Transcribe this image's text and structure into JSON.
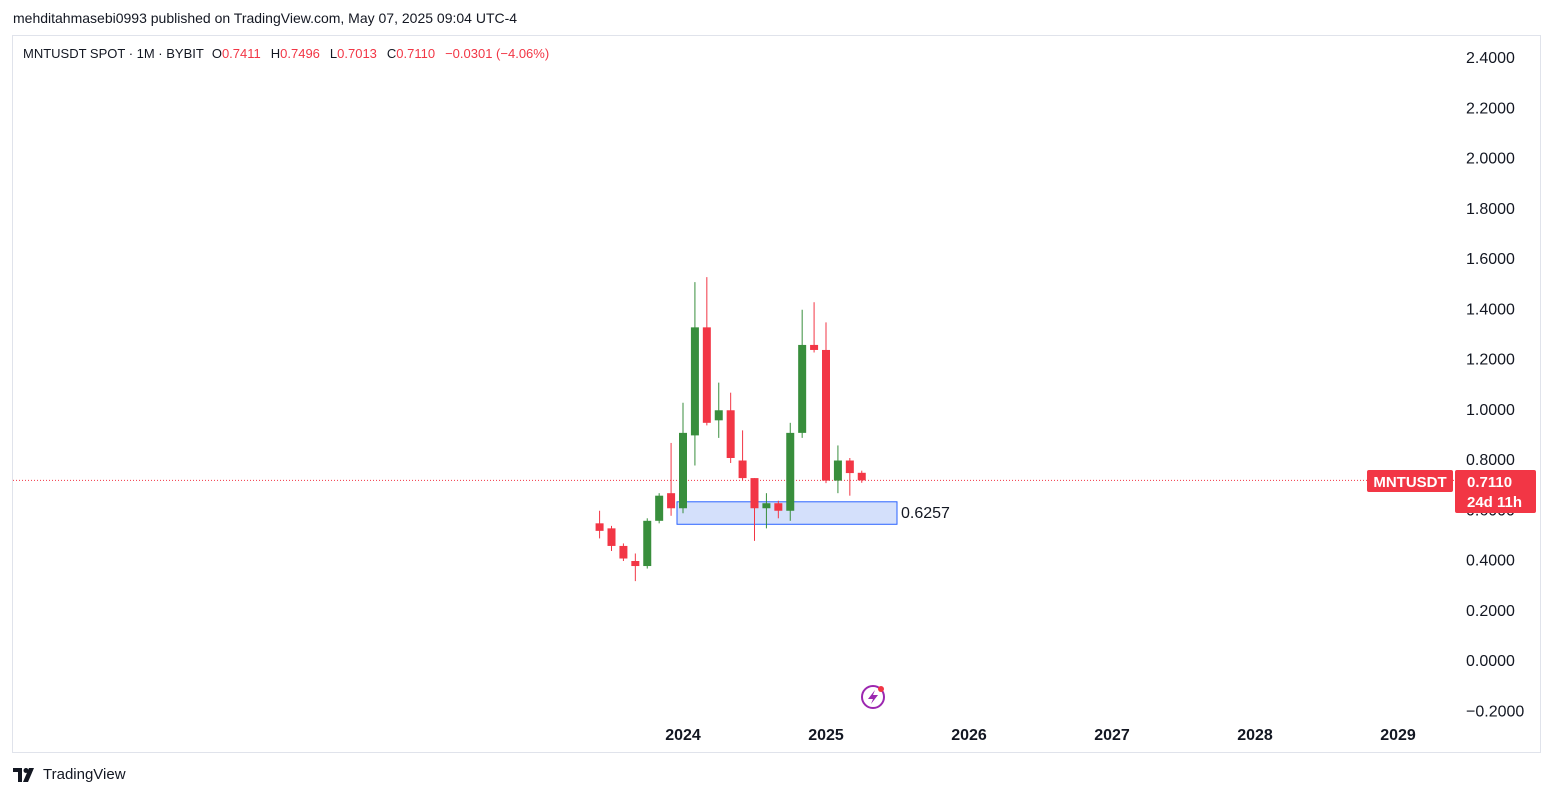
{
  "header": {
    "published_text": "mehditahmasebi0993 published on TradingView.com, May 07, 2025 09:04 UTC-4"
  },
  "legend": {
    "symbol": "MNTUSDT SPOT · 1M · BYBIT",
    "open_label": "O",
    "open": "0.7411",
    "high_label": "H",
    "high": "0.7496",
    "low_label": "L",
    "low": "0.7013",
    "close_label": "C",
    "close": "0.7110",
    "change": "−0.0301 (−4.06%)"
  },
  "price_tag": {
    "symbol": "MNTUSDT",
    "price": "0.7110",
    "countdown": "24d 11h"
  },
  "zone_label": "0.6257",
  "footer": {
    "brand": "TradingView"
  },
  "colors": {
    "up": "#388e3c",
    "down": "#f23645",
    "zone_fill": "#d4e0fb",
    "zone_border": "#2962ff",
    "accent": "#9c27b0"
  },
  "chart_data": {
    "type": "candlestick",
    "interval": "1M",
    "y_axis": {
      "ticks": [
        "2.4000",
        "2.2000",
        "2.0000",
        "1.8000",
        "1.6000",
        "1.4000",
        "1.2000",
        "1.0000",
        "0.8000",
        "0.6000",
        "0.4000",
        "0.2000",
        "0.0000",
        "−0.2000"
      ],
      "ylim": [
        -0.2,
        2.4
      ]
    },
    "x_axis": {
      "ticks": [
        "2024",
        "2025",
        "2026",
        "2027",
        "2028",
        "2029"
      ]
    },
    "last_price": 0.711,
    "zone": {
      "top": 0.6257,
      "bottom": 0.5362
    },
    "candles": [
      {
        "open": 0.54,
        "high": 0.59,
        "low": 0.48,
        "close": 0.51
      },
      {
        "open": 0.52,
        "high": 0.53,
        "low": 0.43,
        "close": 0.45
      },
      {
        "open": 0.45,
        "high": 0.46,
        "low": 0.39,
        "close": 0.4
      },
      {
        "open": 0.39,
        "high": 0.42,
        "low": 0.31,
        "close": 0.37
      },
      {
        "open": 0.37,
        "high": 0.56,
        "low": 0.36,
        "close": 0.55
      },
      {
        "open": 0.55,
        "high": 0.66,
        "low": 0.54,
        "close": 0.65
      },
      {
        "open": 0.66,
        "high": 0.86,
        "low": 0.57,
        "close": 0.6
      },
      {
        "open": 0.6,
        "high": 1.02,
        "low": 0.58,
        "close": 0.9
      },
      {
        "open": 0.89,
        "high": 1.5,
        "low": 0.77,
        "close": 1.32
      },
      {
        "open": 1.32,
        "high": 1.52,
        "low": 0.93,
        "close": 0.94
      },
      {
        "open": 0.95,
        "high": 1.1,
        "low": 0.88,
        "close": 0.99
      },
      {
        "open": 0.99,
        "high": 1.06,
        "low": 0.78,
        "close": 0.8
      },
      {
        "open": 0.79,
        "high": 0.91,
        "low": 0.71,
        "close": 0.72
      },
      {
        "open": 0.72,
        "high": 0.72,
        "low": 0.47,
        "close": 0.6
      },
      {
        "open": 0.6,
        "high": 0.66,
        "low": 0.52,
        "close": 0.62
      },
      {
        "open": 0.62,
        "high": 0.63,
        "low": 0.56,
        "close": 0.59
      },
      {
        "open": 0.59,
        "high": 0.94,
        "low": 0.55,
        "close": 0.9
      },
      {
        "open": 0.9,
        "high": 1.39,
        "low": 0.88,
        "close": 1.25
      },
      {
        "open": 1.25,
        "high": 1.42,
        "low": 1.22,
        "close": 1.23
      },
      {
        "open": 1.23,
        "high": 1.34,
        "low": 0.7,
        "close": 0.71
      },
      {
        "open": 0.71,
        "high": 0.85,
        "low": 0.66,
        "close": 0.79
      },
      {
        "open": 0.79,
        "high": 0.8,
        "low": 0.65,
        "close": 0.74
      },
      {
        "open": 0.7411,
        "high": 0.7496,
        "low": 0.7013,
        "close": 0.711
      }
    ]
  }
}
